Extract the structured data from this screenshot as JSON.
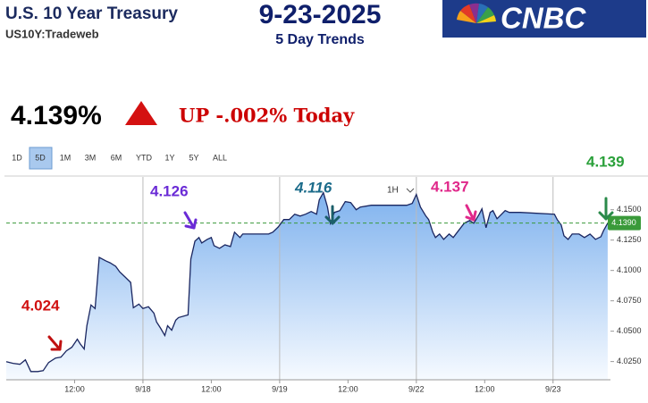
{
  "header": {
    "title": "U.S. 10 Year Treasury",
    "symbol": "US10Y:Tradeweb",
    "date": "9-23-2025",
    "subtitle": "5 Day Trends",
    "logo": "CNBC"
  },
  "quote": {
    "price": "4.139%",
    "change": "UP -.002% Today"
  },
  "range_buttons": [
    "1D",
    "5D",
    "1M",
    "3M",
    "6M",
    "YTD",
    "1Y",
    "5Y",
    "ALL"
  ],
  "interval": "1H",
  "chart_data": {
    "type": "area",
    "x": [
      0,
      0.05,
      0.1,
      0.14,
      0.18,
      0.23,
      0.27,
      0.31,
      0.36,
      0.4,
      0.44,
      0.48,
      0.52,
      0.54,
      0.57,
      0.59,
      0.62,
      0.65,
      0.68,
      0.73,
      0.76,
      0.8,
      0.83,
      0.87,
      0.91,
      0.93,
      0.97,
      1.0,
      1.04,
      1.08,
      1.1,
      1.13,
      1.16,
      1.18,
      1.21,
      1.24,
      1.26,
      1.33,
      1.35,
      1.38,
      1.41,
      1.43,
      1.47,
      1.5,
      1.52,
      1.56,
      1.6,
      1.64,
      1.67,
      1.71,
      1.73,
      1.77,
      1.92,
      1.95,
      1.99,
      2.03,
      2.07,
      2.11,
      2.15,
      2.19,
      2.23,
      2.27,
      2.29,
      2.32,
      2.35,
      2.37,
      2.4,
      2.44,
      2.48,
      2.52,
      2.56,
      2.59,
      2.67,
      2.71,
      2.93,
      2.97,
      3.0,
      3.03,
      3.07,
      3.09,
      3.12,
      3.14,
      3.17,
      3.2,
      3.24,
      3.27,
      3.31,
      3.35,
      3.39,
      3.42,
      3.46,
      3.48,
      3.51,
      3.54,
      3.56,
      3.59,
      3.61,
      3.65,
      3.68,
      3.76,
      4.01,
      4.03,
      4.06,
      4.08,
      4.11,
      4.14,
      4.19,
      4.23,
      4.27,
      4.31,
      4.35,
      4.37,
      4.4
    ],
    "series": [
      {
        "color": "#1a2660",
        "values": [
          4.0249,
          4.0235,
          4.0227,
          4.0264,
          4.0168,
          4.0168,
          4.0175,
          4.0242,
          4.0279,
          4.0286,
          4.0338,
          4.0368,
          4.0434,
          4.0397,
          4.0353,
          4.0545,
          4.0716,
          4.0686,
          4.1108,
          4.1078,
          4.1063,
          4.1034,
          4.0989,
          4.0945,
          4.0901,
          4.0693,
          4.0723,
          4.0686,
          4.0701,
          4.0649,
          4.0575,
          4.0523,
          4.0464,
          4.0545,
          4.0508,
          4.059,
          4.0612,
          4.0634,
          4.1093,
          4.1241,
          4.1271,
          4.1226,
          4.1256,
          4.1271,
          4.1204,
          4.1182,
          4.1211,
          4.1197,
          4.1315,
          4.1271,
          4.13,
          4.13,
          4.13,
          4.1315,
          4.1359,
          4.1419,
          4.1419,
          4.1463,
          4.1448,
          4.1463,
          4.1485,
          4.1463,
          4.1581,
          4.1641,
          4.1522,
          4.1389,
          4.1478,
          4.1493,
          4.1567,
          4.1559,
          4.15,
          4.1522,
          4.1537,
          4.1537,
          4.1537,
          4.1552,
          4.1626,
          4.1522,
          4.1448,
          4.1419,
          4.1315,
          4.1271,
          4.13,
          4.1256,
          4.13,
          4.1271,
          4.133,
          4.1389,
          4.1411,
          4.1389,
          4.1463,
          4.1507,
          4.1352,
          4.1478,
          4.1493,
          4.1426,
          4.1448,
          4.1493,
          4.1478,
          4.1478,
          4.1463,
          4.1419,
          4.1374,
          4.1285,
          4.1256,
          4.13,
          4.13,
          4.1271,
          4.13,
          4.1256,
          4.1278,
          4.133,
          4.1389
        ]
      }
    ],
    "xlim": [
      0,
      4.42
    ],
    "xticks": [
      {
        "value": 0.5,
        "label": "12:00"
      },
      {
        "value": 1,
        "label": "9/18"
      },
      {
        "value": 1.5,
        "label": "12:00"
      },
      {
        "value": 2,
        "label": "9/19"
      },
      {
        "value": 2.5,
        "label": "12:00"
      },
      {
        "value": 3,
        "label": "9/22"
      },
      {
        "value": 3.5,
        "label": "12:00"
      },
      {
        "value": 4,
        "label": "9/23"
      }
    ],
    "ylim": [
      4.01,
      4.177
    ],
    "yticks": [
      {
        "value": 4.025,
        "label": "4.0250"
      },
      {
        "value": 4.05,
        "label": "4.0500"
      },
      {
        "value": 4.075,
        "label": "4.0750"
      },
      {
        "value": 4.1,
        "label": "4.1000"
      },
      {
        "value": 4.125,
        "label": "4.1250"
      },
      {
        "value": 4.15,
        "label": "4.1500"
      }
    ],
    "last_price": {
      "value": 4.139,
      "label": "4.1390",
      "color": "#3a9a3a"
    },
    "annotations": [
      {
        "text": "4.024",
        "color": "#d01010"
      },
      {
        "text": "4.126",
        "color": "#6a2bd6"
      },
      {
        "text": "4.116",
        "color": "#1b6b8a"
      },
      {
        "text": "4.137",
        "color": "#e0288a"
      },
      {
        "text": "4.139",
        "color": "#2aa03a"
      }
    ]
  }
}
